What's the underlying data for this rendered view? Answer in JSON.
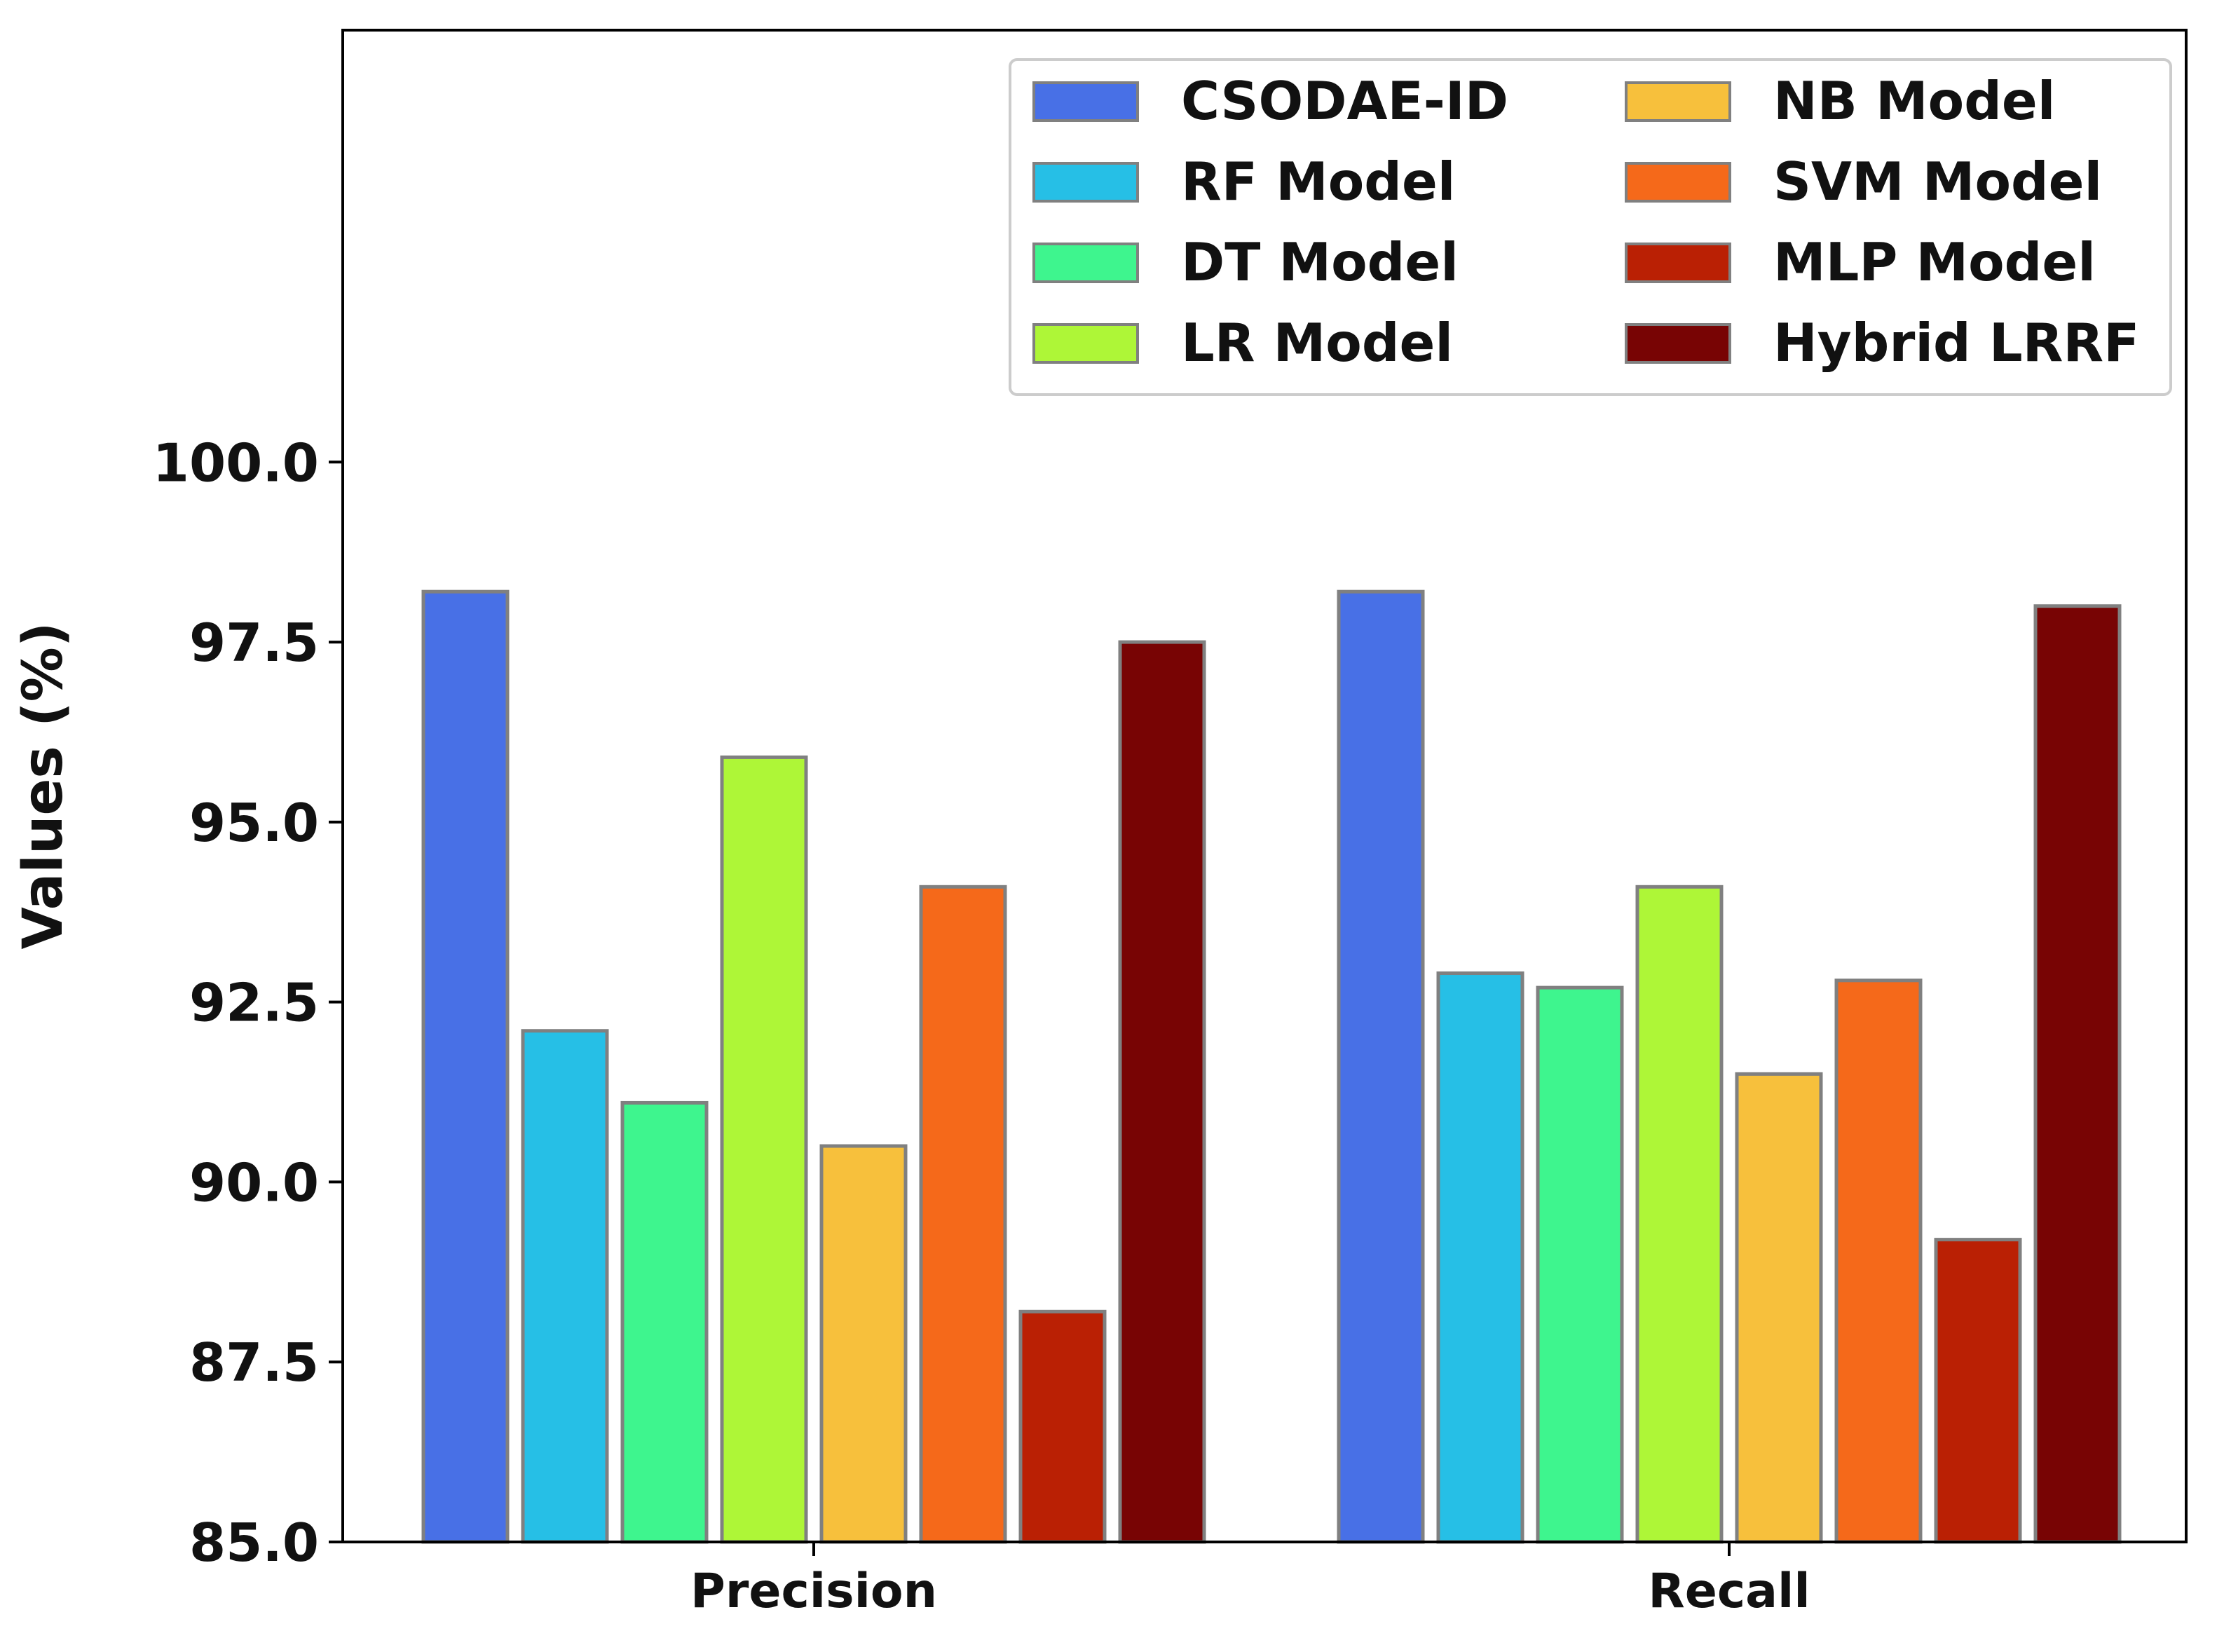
{
  "chart_data": {
    "type": "bar",
    "title": "",
    "xlabel": "",
    "ylabel": "Values (%)",
    "ylim": [
      85.0,
      106.0
    ],
    "yticks": [
      "85.0",
      "87.5",
      "90.0",
      "92.5",
      "95.0",
      "97.5",
      "100.0"
    ],
    "grid": false,
    "legend_position": "top-right",
    "legend_columns": 2,
    "categories": [
      "Precision",
      "Recall"
    ],
    "series": [
      {
        "name": "CSODAE-ID",
        "color": "#4870E6",
        "values": [
          98.2,
          98.2
        ]
      },
      {
        "name": "RF Model",
        "color": "#26BFE6",
        "values": [
          92.1,
          92.9
        ]
      },
      {
        "name": "DT Model",
        "color": "#3EF58E",
        "values": [
          91.1,
          92.7
        ]
      },
      {
        "name": "LR Model",
        "color": "#AEF637",
        "values": [
          95.9,
          94.1
        ]
      },
      {
        "name": "NB Model",
        "color": "#F7C03C",
        "values": [
          90.5,
          91.5
        ]
      },
      {
        "name": "SVM Model",
        "color": "#F5691A",
        "values": [
          94.1,
          92.8
        ]
      },
      {
        "name": "MLP Model",
        "color": "#BA2004",
        "values": [
          88.2,
          89.2
        ]
      },
      {
        "name": "Hybrid LRRF",
        "color": "#780404",
        "values": [
          97.5,
          98.0
        ]
      }
    ]
  }
}
